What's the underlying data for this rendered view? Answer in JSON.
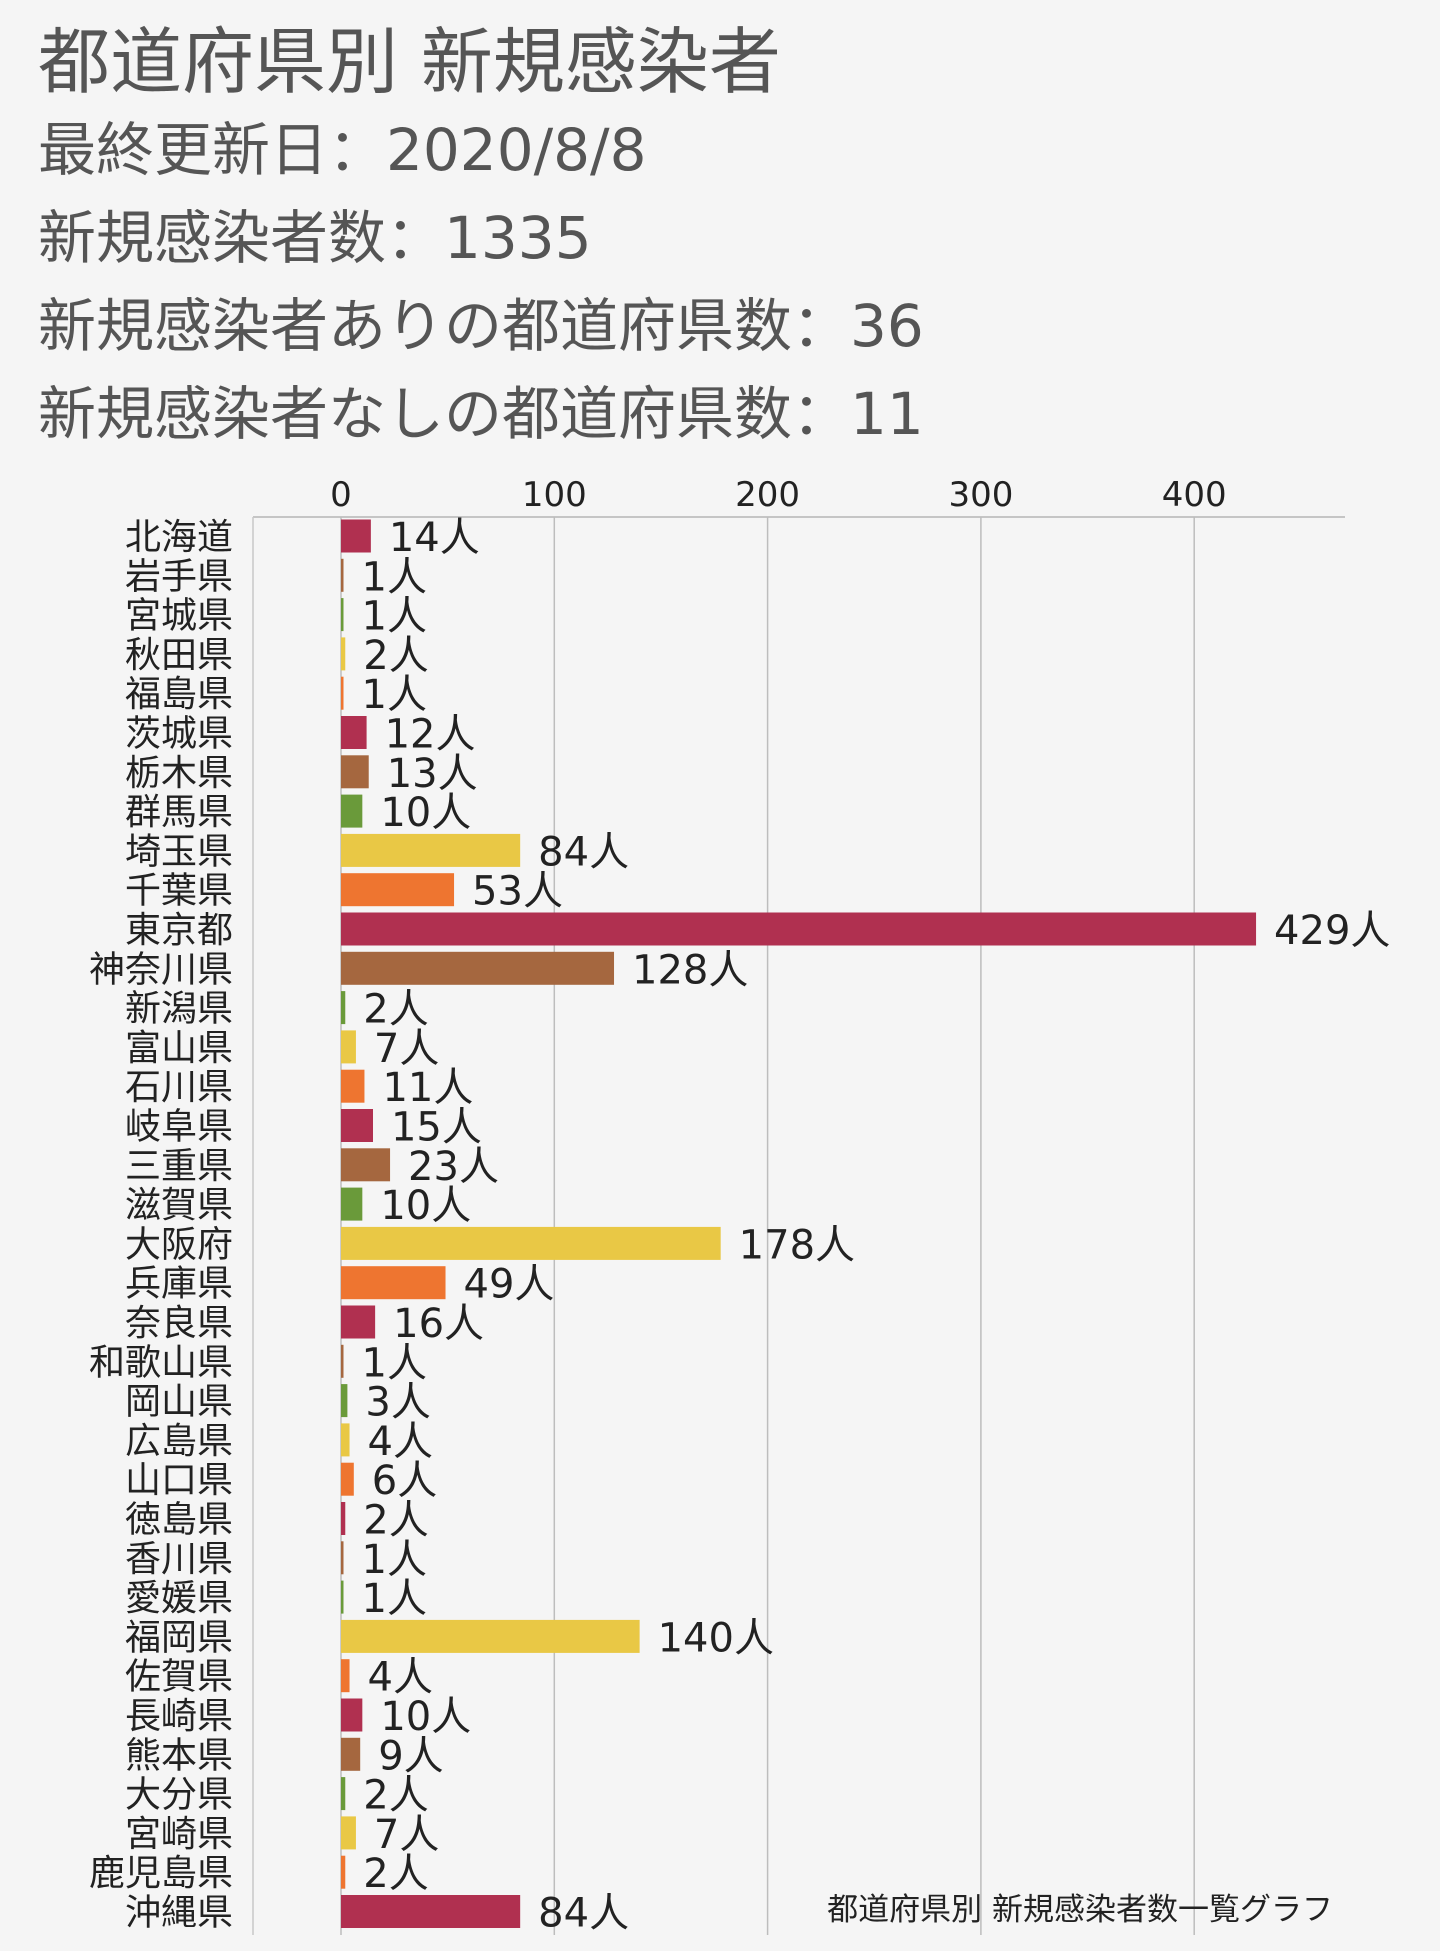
{
  "header": {
    "title": "都道府県別 新規感染者",
    "updated": "最終更新日：2020/8/8",
    "total": "新規感染者数：1335",
    "with_cases": "新規感染者ありの都道府県数：36",
    "without_cases": "新規感染者なしの都道府県数：11"
  },
  "chart_data": {
    "type": "bar",
    "orientation": "horizontal",
    "title": "",
    "caption": "都道府県別 新規感染者数一覧グラフ",
    "xlabel": "",
    "ylabel": "",
    "xlim": [
      0,
      470
    ],
    "xticks": [
      0,
      100,
      200,
      300,
      400
    ],
    "grid": true,
    "value_suffix": "人",
    "palette": [
      "#b03050",
      "#a5673f",
      "#6a9a3a",
      "#e9c845",
      "#ee7530"
    ],
    "categories": [
      "北海道",
      "岩手県",
      "宮城県",
      "秋田県",
      "福島県",
      "茨城県",
      "栃木県",
      "群馬県",
      "埼玉県",
      "千葉県",
      "東京都",
      "神奈川県",
      "新潟県",
      "富山県",
      "石川県",
      "岐阜県",
      "三重県",
      "滋賀県",
      "大阪府",
      "兵庫県",
      "奈良県",
      "和歌山県",
      "岡山県",
      "広島県",
      "山口県",
      "徳島県",
      "香川県",
      "愛媛県",
      "福岡県",
      "佐賀県",
      "長崎県",
      "熊本県",
      "大分県",
      "宮崎県",
      "鹿児島県",
      "沖縄県"
    ],
    "values": [
      14,
      1,
      1,
      2,
      1,
      12,
      13,
      10,
      84,
      53,
      429,
      128,
      2,
      7,
      11,
      15,
      23,
      10,
      178,
      49,
      16,
      1,
      3,
      4,
      6,
      2,
      1,
      1,
      140,
      4,
      10,
      9,
      2,
      7,
      2,
      84
    ]
  }
}
